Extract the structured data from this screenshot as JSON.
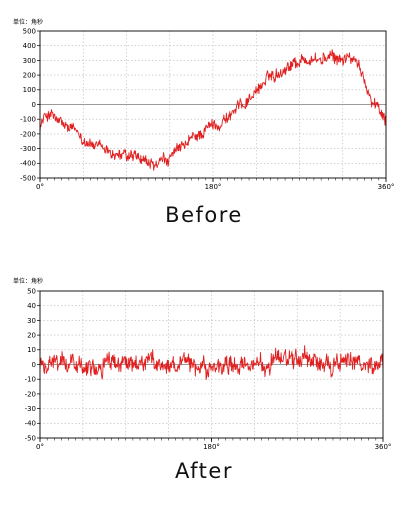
{
  "chart_data": [
    {
      "type": "line",
      "unit_label": "单位：角秒",
      "caption": "Before",
      "ylim": [
        -500,
        500
      ],
      "yticks": [
        -500,
        -400,
        -300,
        -200,
        -100,
        0,
        100,
        200,
        300,
        400,
        500
      ],
      "xlim": [
        0,
        360
      ],
      "xticks": [
        {
          "value": 0,
          "label": "0°"
        },
        {
          "value": 180,
          "label": "180°"
        },
        {
          "value": 360,
          "label": "360°"
        }
      ],
      "x_minor_grid_step": 45,
      "grid": true,
      "line_color": "#e02020",
      "series": [
        {
          "x": [
            0,
            5,
            10,
            15,
            20,
            30,
            40,
            50,
            60,
            70,
            80,
            90,
            100,
            110,
            120,
            130,
            140,
            150,
            160,
            170,
            180,
            190,
            200,
            210,
            220,
            230,
            240,
            250,
            260,
            270,
            280,
            290,
            300,
            310,
            320,
            330,
            340,
            345,
            350,
            355,
            360
          ],
          "values": [
            -140,
            -90,
            -60,
            -90,
            -130,
            -170,
            -200,
            -250,
            -300,
            -320,
            -340,
            -360,
            -370,
            -410,
            -420,
            -390,
            -340,
            -290,
            -230,
            -180,
            -140,
            -110,
            -60,
            0,
            60,
            130,
            190,
            230,
            280,
            300,
            310,
            300,
            320,
            300,
            330,
            270,
            130,
            50,
            0,
            -40,
            -80
          ]
        }
      ]
    },
    {
      "type": "line",
      "unit_label": "单位：角秒",
      "caption": "After",
      "ylim": [
        -50,
        50
      ],
      "yticks": [
        -50,
        -40,
        -30,
        -20,
        -10,
        0,
        10,
        20,
        30,
        40,
        50
      ],
      "xlim": [
        0,
        360
      ],
      "xticks": [
        {
          "value": 0,
          "label": "0°"
        },
        {
          "value": 180,
          "label": "180°"
        },
        {
          "value": 360,
          "label": "360°"
        }
      ],
      "x_minor_grid_step": 45,
      "grid": true,
      "line_color": "#e02020",
      "series": [
        {
          "x": [
            0,
            20,
            40,
            60,
            80,
            100,
            120,
            140,
            160,
            180,
            200,
            220,
            240,
            260,
            280,
            300,
            320,
            340,
            360
          ],
          "values": [
            0,
            1,
            1,
            0,
            0,
            0,
            0,
            -1,
            -2,
            -2,
            -2,
            -1,
            0,
            2,
            4,
            2,
            1,
            0,
            -1
          ]
        }
      ]
    }
  ]
}
